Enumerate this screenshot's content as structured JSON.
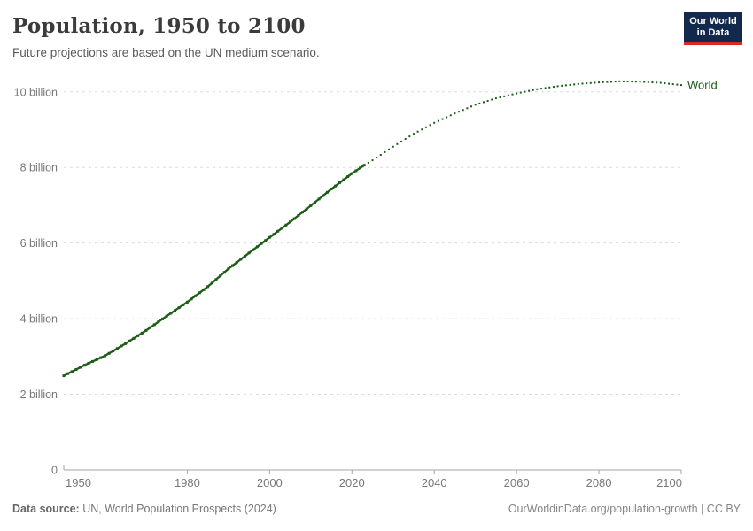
{
  "header": {
    "title": "Population, 1950 to 2100",
    "subtitle": "Future projections are based on the UN medium scenario.",
    "logo": {
      "line1": "Our World",
      "line2": "in Data"
    }
  },
  "footer": {
    "source_label": "Data source:",
    "source_value": "UN, World Population Prospects (2024)",
    "link": "OurWorldinData.org/population-growth | CC BY"
  },
  "colors": {
    "line": "#1d5c17",
    "grid": "#dcdcdc",
    "axis": "#a5a5a5",
    "tick_label": "#787878",
    "logo_bg": "#12294d",
    "logo_stripe": "#d42b21"
  },
  "chart_data": {
    "type": "line",
    "title": "Population, 1950 to 2100",
    "subtitle": "Future projections are based on the UN medium scenario.",
    "unit": "billion",
    "entity_label": "World",
    "legend_position": "end-of-line",
    "grid": true,
    "x_axis": {
      "min": 1950,
      "max": 2100,
      "ticks": [
        1950,
        1980,
        2000,
        2020,
        2040,
        2060,
        2080,
        2100
      ]
    },
    "y_axis": {
      "min": 0,
      "max": 10.6,
      "ticks": [
        {
          "v": 0,
          "label": "0"
        },
        {
          "v": 2,
          "label": "2 billion"
        },
        {
          "v": 4,
          "label": "4 billion"
        },
        {
          "v": 6,
          "label": "6 billion"
        },
        {
          "v": 8,
          "label": "8 billion"
        },
        {
          "v": 10,
          "label": "10 billion"
        }
      ]
    },
    "series": [
      {
        "name": "World",
        "color": "#1d5c17",
        "historical_until": 2023,
        "projection_style": "dotted",
        "points": [
          [
            1950,
            2.49
          ],
          [
            1955,
            2.77
          ],
          [
            1960,
            3.02
          ],
          [
            1965,
            3.34
          ],
          [
            1970,
            3.69
          ],
          [
            1975,
            4.07
          ],
          [
            1980,
            4.44
          ],
          [
            1985,
            4.85
          ],
          [
            1990,
            5.32
          ],
          [
            1995,
            5.74
          ],
          [
            2000,
            6.15
          ],
          [
            2005,
            6.56
          ],
          [
            2010,
            6.99
          ],
          [
            2015,
            7.43
          ],
          [
            2020,
            7.84
          ],
          [
            2023,
            8.06
          ],
          [
            2025,
            8.19
          ],
          [
            2030,
            8.55
          ],
          [
            2035,
            8.89
          ],
          [
            2040,
            9.18
          ],
          [
            2045,
            9.43
          ],
          [
            2050,
            9.66
          ],
          [
            2055,
            9.83
          ],
          [
            2060,
            9.96
          ],
          [
            2065,
            10.07
          ],
          [
            2070,
            10.15
          ],
          [
            2075,
            10.21
          ],
          [
            2080,
            10.25
          ],
          [
            2085,
            10.28
          ],
          [
            2090,
            10.27
          ],
          [
            2095,
            10.24
          ],
          [
            2100,
            10.18
          ]
        ]
      }
    ]
  }
}
